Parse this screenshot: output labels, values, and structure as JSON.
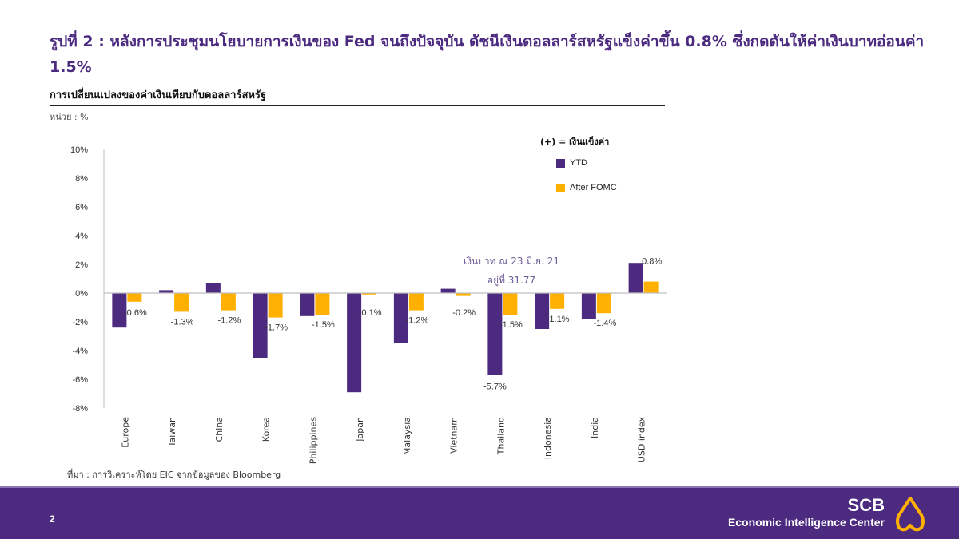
{
  "header": {
    "title": "รูปที่ 2 : หลังการประชุมนโยบายการเงินของ Fed จนถึงปัจจุบัน ดัชนีเงินดอลลาร์สหรัฐแข็งค่าขึ้น 0.8% ซึ่งกดดันให้ค่าเงินบาทอ่อนค่า 1.5%",
    "subtitle": "การเปลี่ยนแปลงของค่าเงินเทียบกับดอลลาร์สหรัฐ",
    "unit": "หน่วย : %"
  },
  "legend": {
    "title": "(+) = เงินแข็งค่า",
    "items": [
      {
        "label": "YTD",
        "color": "#4b2a7f"
      },
      {
        "label": "After FOMC",
        "color": "#ffb000"
      }
    ]
  },
  "annotation": {
    "line1": "เงินบาท ณ 23 มิ.ย. 21",
    "line2": "อยู่ที่ 31.77"
  },
  "source": "ที่มา : การวิเคราะห์โดย EIC จากข้อมูลของ Bloomberg",
  "footer": {
    "page_number": "2",
    "brand_name": "SCB",
    "brand_subtitle": "Economic Intelligence Center"
  },
  "colors": {
    "primary": "#4b2a7f",
    "accent": "#ffb000"
  },
  "chart_data": {
    "type": "bar",
    "title": "การเปลี่ยนแปลงของค่าเงินเทียบกับดอลลาร์สหรัฐ",
    "xlabel": "",
    "ylabel": "%",
    "ylim": [
      -8,
      10
    ],
    "yticks": [
      10,
      8,
      6,
      4,
      2,
      0,
      -2,
      -4,
      -6,
      -8
    ],
    "ytick_labels": [
      "10%",
      "8%",
      "6%",
      "4%",
      "2%",
      "0%",
      "-2%",
      "-4%",
      "-6%",
      "-8%"
    ],
    "grid": false,
    "legend_position": "top-right",
    "categories": [
      "Europe",
      "Taiwan",
      "China",
      "Korea",
      "Philippines",
      "Japan",
      "Malaysia",
      "Vietnam",
      "Thailand",
      "Indonesia",
      "India",
      "USD index"
    ],
    "series": [
      {
        "name": "YTD",
        "color": "#4b2a7f",
        "values": [
          -2.4,
          0.2,
          0.7,
          -4.5,
          -1.6,
          -6.9,
          -3.5,
          0.3,
          -5.7,
          -2.5,
          -1.8,
          2.1
        ],
        "labels": [
          "",
          "",
          "",
          "",
          "",
          "",
          "",
          "",
          "-5.7%",
          "",
          "",
          ""
        ]
      },
      {
        "name": "After FOMC",
        "color": "#ffb000",
        "values": [
          -0.6,
          -1.3,
          -1.2,
          -1.7,
          -1.5,
          -0.1,
          -1.2,
          -0.2,
          -1.5,
          -1.1,
          -1.4,
          0.8
        ],
        "labels": [
          "-0.6%",
          "-1.3%",
          "-1.2%",
          "-1.7%",
          "-1.5%",
          "-0.1%",
          "-1.2%",
          "-0.2%",
          "-1.5%",
          "-1.1%",
          "-1.4%",
          "0.8%"
        ]
      }
    ]
  }
}
